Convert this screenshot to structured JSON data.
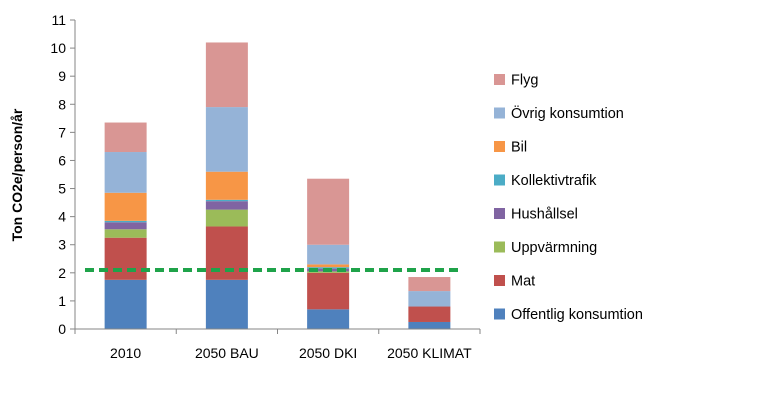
{
  "chart_data": {
    "type": "bar",
    "stacked": true,
    "title": "",
    "xlabel": "",
    "ylabel": "Ton CO2e/person/år",
    "ylim": [
      0,
      11
    ],
    "yticks": [
      0,
      1,
      2,
      3,
      4,
      5,
      6,
      7,
      8,
      9,
      10,
      11
    ],
    "grid": false,
    "legend_position": "right",
    "categories": [
      "2010",
      "2050 BAU",
      "2050 DKI",
      "2050 KLIMAT"
    ],
    "series": [
      {
        "name": "Offentlig konsumtion",
        "color": "#4F81BD",
        "values": [
          1.75,
          1.75,
          0.7,
          0.25
        ]
      },
      {
        "name": "Mat",
        "color": "#C0504D",
        "values": [
          1.5,
          1.9,
          1.3,
          0.55
        ]
      },
      {
        "name": "Uppvärmning",
        "color": "#9BBB59",
        "values": [
          0.3,
          0.6,
          0.05,
          0.0
        ]
      },
      {
        "name": "Hushållsel",
        "color": "#8064A2",
        "values": [
          0.25,
          0.3,
          0.1,
          0.0
        ]
      },
      {
        "name": "Kollektivtrafik",
        "color": "#4BACC6",
        "values": [
          0.05,
          0.05,
          0.05,
          0.0
        ]
      },
      {
        "name": "Bil",
        "color": "#F79646",
        "values": [
          1.0,
          1.0,
          0.1,
          0.0
        ]
      },
      {
        "name": "Övrig konsumtion",
        "color": "#95B3D7",
        "values": [
          1.45,
          2.3,
          0.7,
          0.55
        ]
      },
      {
        "name": "Flyg",
        "color": "#D99694",
        "values": [
          1.05,
          2.3,
          2.35,
          0.5
        ]
      }
    ],
    "reference_line": {
      "value": 2.1,
      "color": "#1FA34A",
      "style": "dashed"
    }
  }
}
